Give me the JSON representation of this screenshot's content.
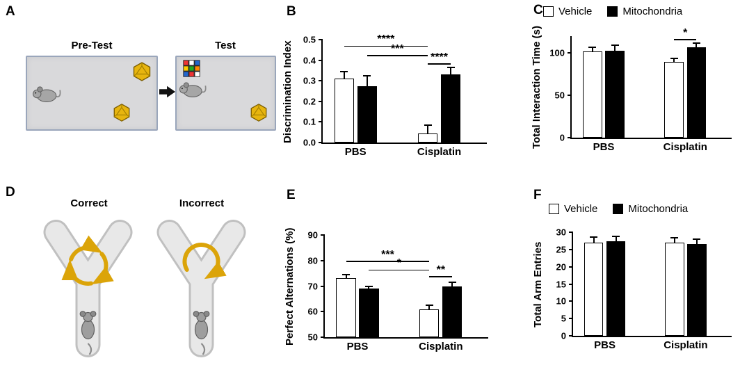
{
  "panels": {
    "a": {
      "label": "A",
      "pretest_title": "Pre-Test",
      "test_title": "Test"
    },
    "b": {
      "label": "B"
    },
    "c": {
      "label": "C"
    },
    "d": {
      "label": "D",
      "correct_title": "Correct",
      "incorrect_title": "Incorrect"
    },
    "e": {
      "label": "E"
    },
    "f": {
      "label": "F"
    }
  },
  "legend": {
    "vehicle_label": "Vehicle",
    "mitochondria_label": "Mitochondria"
  },
  "colors": {
    "vehicle_fill": "#ffffff",
    "mitochondria_fill": "#000000",
    "gold": "#DBA409",
    "arena_fill": "#d9d9db",
    "arena_border": "#9aa6bb",
    "maze_gray": "#e8e8e8"
  },
  "chart_data": [
    {
      "id": "B",
      "type": "bar",
      "title": "",
      "ylabel": "Discrimination Index",
      "xlabel": "",
      "categories": [
        "PBS",
        "Cisplatin"
      ],
      "series": [
        {
          "name": "Vehicle",
          "color": "#ffffff",
          "values": [
            0.31,
            0.045
          ],
          "errors": [
            0.035,
            0.04
          ]
        },
        {
          "name": "Mitochondria",
          "color": "#000000",
          "values": [
            0.275,
            0.33
          ],
          "errors": [
            0.05,
            0.035
          ]
        }
      ],
      "ylim": [
        0,
        0.5
      ],
      "yticks": [
        0,
        0.1,
        0.2,
        0.3,
        0.4,
        0.5
      ],
      "ytick_labels": [
        "0.0",
        "0.1",
        "0.2",
        "0.3",
        "0.4",
        "0.5"
      ],
      "grid": false,
      "legend": false,
      "annotations": [
        {
          "from_bar": 0,
          "to_bar": 2,
          "y": 0.465,
          "label": "****"
        },
        {
          "from_bar": 1,
          "to_bar": 2,
          "y": 0.42,
          "label": "***"
        },
        {
          "from_bar": 2,
          "to_bar": 3,
          "y": 0.378,
          "label": "****"
        }
      ]
    },
    {
      "id": "C",
      "type": "bar",
      "title": "",
      "ylabel": "Total Interaction Time (s)",
      "xlabel": "",
      "categories": [
        "PBS",
        "Cisplatin"
      ],
      "series": [
        {
          "name": "Vehicle",
          "color": "#ffffff",
          "values": [
            102,
            90
          ],
          "errors": [
            5,
            4
          ]
        },
        {
          "name": "Mitochondria",
          "color": "#000000",
          "values": [
            103,
            107
          ],
          "errors": [
            6,
            5
          ]
        }
      ],
      "ylim": [
        0,
        120
      ],
      "yticks": [
        0,
        50,
        100
      ],
      "ytick_labels": [
        "0",
        "50",
        "100"
      ],
      "grid": false,
      "legend": true,
      "annotations": [
        {
          "from_bar": 2,
          "to_bar": 3,
          "y": 115,
          "label": "*"
        }
      ]
    },
    {
      "id": "E",
      "type": "bar",
      "title": "",
      "ylabel": "Perfect Alternations (%)",
      "xlabel": "",
      "categories": [
        "PBS",
        "Cisplatin"
      ],
      "series": [
        {
          "name": "Vehicle",
          "color": "#ffffff",
          "values": [
            73,
            61
          ],
          "errors": [
            1.5,
            1.5
          ]
        },
        {
          "name": "Mitochondria",
          "color": "#000000",
          "values": [
            69,
            70
          ],
          "errors": [
            1,
            1.5
          ]
        }
      ],
      "ylim": [
        50,
        90
      ],
      "yticks": [
        50,
        60,
        70,
        80,
        90
      ],
      "ytick_labels": [
        "50",
        "60",
        "70",
        "80",
        "90"
      ],
      "grid": false,
      "legend": false,
      "annotations": [
        {
          "from_bar": 0,
          "to_bar": 2,
          "y": 79.5,
          "label": "***"
        },
        {
          "from_bar": 1,
          "to_bar": 2,
          "y": 76,
          "label": "*"
        },
        {
          "from_bar": 2,
          "to_bar": 3,
          "y": 73.5,
          "label": "**"
        }
      ]
    },
    {
      "id": "F",
      "type": "bar",
      "title": "",
      "ylabel": "Total Arm Entries",
      "xlabel": "",
      "categories": [
        "PBS",
        "Cisplatin"
      ],
      "series": [
        {
          "name": "Vehicle",
          "color": "#ffffff",
          "values": [
            27,
            27
          ],
          "errors": [
            1.5,
            1.3
          ]
        },
        {
          "name": "Mitochondria",
          "color": "#000000",
          "values": [
            27.3,
            26.5
          ],
          "errors": [
            1.5,
            1.5
          ]
        }
      ],
      "ylim": [
        0,
        30
      ],
      "yticks": [
        0,
        5,
        10,
        15,
        20,
        25,
        30
      ],
      "ytick_labels": [
        "0",
        "5",
        "10",
        "15",
        "20",
        "25",
        "30"
      ],
      "grid": false,
      "legend": true,
      "annotations": []
    }
  ]
}
